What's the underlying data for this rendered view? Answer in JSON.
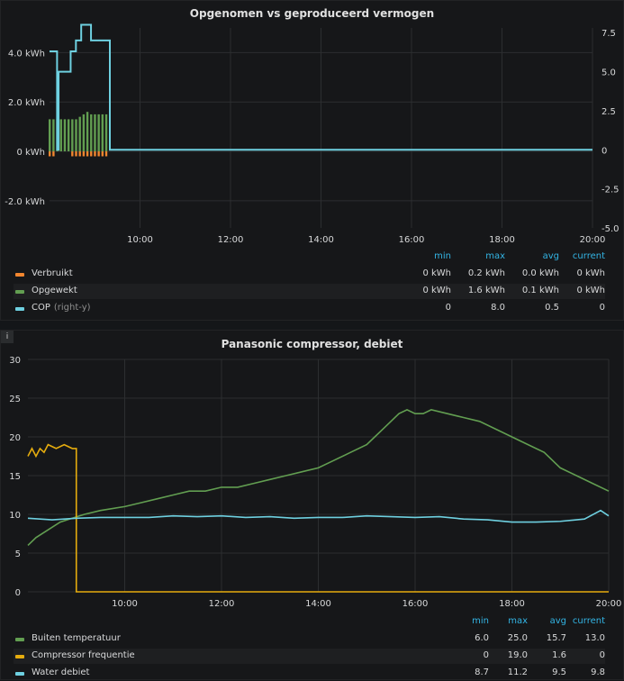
{
  "panels": [
    {
      "title": "Opgenomen vs geproduceerd vermogen",
      "legend_headers": [
        "min",
        "max",
        "avg",
        "current"
      ],
      "legend": [
        {
          "name": "Verbruikt",
          "note": "",
          "color": "#f2862f",
          "min": "0 kWh",
          "max": "0.2 kWh",
          "avg": "0.0 kWh",
          "current": "0 kWh"
        },
        {
          "name": "Opgewekt",
          "note": "",
          "color": "#629e51",
          "min": "0 kWh",
          "max": "1.6 kWh",
          "avg": "0.1 kWh",
          "current": "0 kWh"
        },
        {
          "name": "COP",
          "note": "(right-y)",
          "color": "#6ed0e0",
          "min": "0",
          "max": "8.0",
          "avg": "0.5",
          "current": "0"
        }
      ]
    },
    {
      "title": "Panasonic compressor, debiet",
      "info_icon": "i",
      "legend_headers": [
        "min",
        "max",
        "avg",
        "current"
      ],
      "legend": [
        {
          "name": "Buiten temperatuur",
          "note": "",
          "color": "#629e51",
          "min": "6.0",
          "max": "25.0",
          "avg": "15.7",
          "current": "13.0"
        },
        {
          "name": "Compressor frequentie",
          "note": "",
          "color": "#e5ac0e",
          "min": "0",
          "max": "19.0",
          "avg": "1.6",
          "current": "0"
        },
        {
          "name": "Water debiet",
          "note": "",
          "color": "#6ed0e0",
          "min": "8.7",
          "max": "11.2",
          "avg": "9.5",
          "current": "9.8"
        }
      ]
    }
  ],
  "chart_data": [
    {
      "type": "bar",
      "title": "Opgenomen vs geproduceerd vermogen",
      "x_range": [
        "08:00",
        "20:00"
      ],
      "x_ticks": [
        "10:00",
        "12:00",
        "14:00",
        "16:00",
        "18:00",
        "20:00"
      ],
      "y_left": {
        "ticks": [
          "4.0 kWh",
          "2.0 kWh",
          "0 kWh",
          "-2.0 kWh"
        ],
        "range": [
          -3.1,
          5.0
        ]
      },
      "y_right": {
        "ticks": [
          "7.5",
          "5.0",
          "2.5",
          "0",
          "-2.5",
          "-5.0"
        ],
        "range": [
          -5.0,
          7.8
        ]
      },
      "grid": true,
      "series": [
        {
          "name": "Verbruikt",
          "axis": "left",
          "color": "#f2862f",
          "style": "bars",
          "x": [
            "08:00",
            "08:05",
            "08:30",
            "08:35",
            "08:40",
            "08:45",
            "08:50",
            "08:55",
            "09:00",
            "09:05",
            "09:10",
            "09:15"
          ],
          "values": [
            -0.2,
            -0.2,
            -0.2,
            -0.2,
            -0.2,
            -0.2,
            -0.2,
            -0.2,
            -0.2,
            -0.2,
            -0.2,
            -0.2
          ]
        },
        {
          "name": "Opgewekt",
          "axis": "left",
          "color": "#629e51",
          "style": "bars",
          "x": [
            "08:00",
            "08:05",
            "08:10",
            "08:15",
            "08:20",
            "08:25",
            "08:30",
            "08:35",
            "08:40",
            "08:45",
            "08:50",
            "08:55",
            "09:00",
            "09:05",
            "09:10",
            "09:15"
          ],
          "values": [
            1.3,
            1.3,
            1.3,
            1.3,
            1.3,
            1.3,
            1.3,
            1.3,
            1.4,
            1.5,
            1.6,
            1.5,
            1.5,
            1.5,
            1.5,
            1.5
          ]
        },
        {
          "name": "COP",
          "axis": "right",
          "color": "#6ed0e0",
          "style": "line",
          "x": [
            "08:00",
            "08:10",
            "08:10",
            "08:12",
            "08:12",
            "08:28",
            "08:28",
            "08:35",
            "08:35",
            "08:42",
            "08:42",
            "08:55",
            "08:55",
            "09:20",
            "09:20",
            "20:00"
          ],
          "values": [
            6.3,
            6.3,
            0,
            0,
            5.0,
            5.0,
            6.3,
            6.3,
            7.0,
            7.0,
            8.0,
            8.0,
            7.0,
            7.0,
            0,
            0
          ]
        }
      ]
    },
    {
      "type": "line",
      "title": "Panasonic compressor, debiet",
      "x_range": [
        "08:00",
        "20:00"
      ],
      "x_ticks": [
        "10:00",
        "12:00",
        "14:00",
        "16:00",
        "18:00",
        "20:00"
      ],
      "y_ticks": [
        "30",
        "25",
        "20",
        "15",
        "10",
        "5",
        "0"
      ],
      "ylim": [
        0,
        30
      ],
      "grid": true,
      "series": [
        {
          "name": "Buiten temperatuur",
          "color": "#629e51",
          "x": [
            "08:00",
            "08:10",
            "08:25",
            "08:40",
            "08:55",
            "09:10",
            "09:30",
            "10:00",
            "10:20",
            "10:40",
            "11:00",
            "11:20",
            "11:40",
            "12:00",
            "12:20",
            "12:40",
            "13:00",
            "13:20",
            "13:40",
            "14:00",
            "14:20",
            "14:40",
            "15:00",
            "15:10",
            "15:20",
            "15:30",
            "15:40",
            "15:50",
            "16:00",
            "16:10",
            "16:20",
            "16:40",
            "17:00",
            "17:20",
            "17:40",
            "18:00",
            "18:20",
            "18:40",
            "19:00",
            "19:20",
            "19:40",
            "20:00"
          ],
          "values": [
            6,
            7,
            8,
            9,
            9.5,
            10,
            10.5,
            11,
            11.5,
            12,
            12.5,
            13,
            13,
            13.5,
            13.5,
            14,
            14.5,
            15,
            15.5,
            16,
            17,
            18,
            19,
            20,
            21,
            22,
            23,
            23.5,
            23,
            23,
            23.5,
            23,
            22.5,
            22,
            21,
            20,
            19,
            18,
            16,
            15,
            14,
            13
          ]
        },
        {
          "name": "Compressor frequentie",
          "color": "#e5ac0e",
          "x": [
            "08:00",
            "08:05",
            "08:10",
            "08:15",
            "08:20",
            "08:25",
            "08:35",
            "08:45",
            "08:55",
            "09:00",
            "09:00",
            "20:00"
          ],
          "values": [
            17.5,
            18.5,
            17.5,
            18.5,
            18,
            19,
            18.5,
            19,
            18.5,
            18.5,
            0,
            0
          ]
        },
        {
          "name": "Water debiet",
          "color": "#6ed0e0",
          "x": [
            "08:00",
            "08:30",
            "09:00",
            "09:30",
            "10:00",
            "10:30",
            "11:00",
            "11:30",
            "12:00",
            "12:30",
            "13:00",
            "13:30",
            "14:00",
            "14:30",
            "15:00",
            "15:30",
            "16:00",
            "16:30",
            "17:00",
            "17:30",
            "18:00",
            "18:30",
            "19:00",
            "19:30",
            "19:50",
            "20:00"
          ],
          "values": [
            9.5,
            9.3,
            9.5,
            9.6,
            9.6,
            9.6,
            9.8,
            9.7,
            9.8,
            9.6,
            9.7,
            9.5,
            9.6,
            9.6,
            9.8,
            9.7,
            9.6,
            9.7,
            9.4,
            9.3,
            9.0,
            9.0,
            9.1,
            9.4,
            10.5,
            9.8
          ]
        }
      ]
    }
  ]
}
